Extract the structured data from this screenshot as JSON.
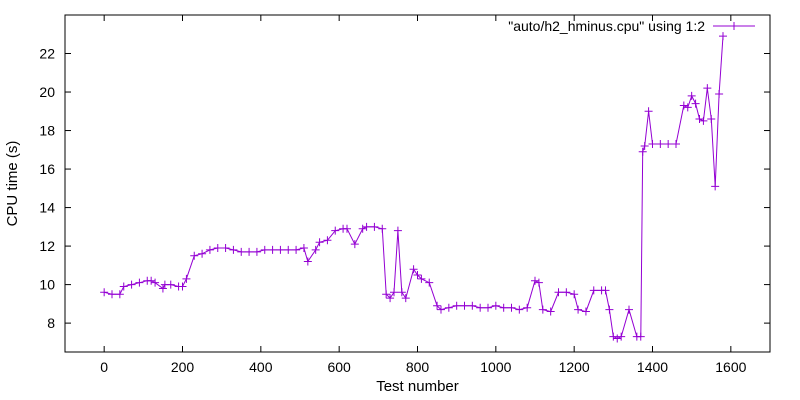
{
  "chart_data": {
    "type": "line",
    "xlabel": "Test number",
    "ylabel": "CPU time (s)",
    "xlim": [
      -100,
      1700
    ],
    "ylim": [
      6.5,
      24
    ],
    "xticks": [
      0,
      200,
      400,
      600,
      800,
      1000,
      1200,
      1400,
      1600
    ],
    "yticks": [
      8,
      10,
      12,
      14,
      16,
      18,
      20,
      22
    ],
    "legend_position": "top-right",
    "marker": "plus",
    "color": "#9400d3",
    "series": [
      {
        "name": "\"auto/h2_hminus.cpu\" using 1:2",
        "x": [
          0,
          20,
          40,
          50,
          70,
          90,
          110,
          120,
          130,
          150,
          155,
          170,
          190,
          200,
          210,
          230,
          250,
          270,
          290,
          310,
          330,
          350,
          370,
          390,
          410,
          430,
          450,
          470,
          490,
          510,
          520,
          540,
          550,
          570,
          590,
          610,
          620,
          640,
          660,
          670,
          690,
          710,
          720,
          730,
          740,
          750,
          760,
          770,
          790,
          800,
          810,
          830,
          850,
          860,
          880,
          900,
          920,
          940,
          960,
          980,
          1000,
          1020,
          1040,
          1060,
          1080,
          1100,
          1110,
          1120,
          1140,
          1160,
          1180,
          1200,
          1210,
          1230,
          1250,
          1270,
          1280,
          1290,
          1300,
          1310,
          1320,
          1340,
          1360,
          1370,
          1375,
          1380,
          1390,
          1400,
          1420,
          1440,
          1460,
          1480,
          1490,
          1500,
          1510,
          1520,
          1530,
          1540,
          1550,
          1560,
          1570,
          1580
        ],
        "y": [
          9.6,
          9.5,
          9.5,
          9.9,
          10.0,
          10.1,
          10.2,
          10.2,
          10.1,
          9.8,
          10.0,
          10.0,
          9.9,
          9.9,
          10.3,
          11.5,
          11.6,
          11.8,
          11.9,
          11.9,
          11.8,
          11.7,
          11.7,
          11.7,
          11.8,
          11.8,
          11.8,
          11.8,
          11.8,
          11.9,
          11.2,
          11.8,
          12.2,
          12.3,
          12.8,
          12.9,
          12.9,
          12.1,
          12.9,
          13.0,
          13.0,
          12.9,
          9.5,
          9.3,
          9.6,
          12.8,
          9.6,
          9.3,
          10.8,
          10.5,
          10.3,
          10.1,
          8.9,
          8.7,
          8.8,
          8.9,
          8.9,
          8.9,
          8.8,
          8.8,
          8.9,
          8.8,
          8.8,
          8.7,
          8.8,
          10.2,
          10.1,
          8.7,
          8.6,
          9.6,
          9.6,
          9.5,
          8.7,
          8.6,
          9.7,
          9.7,
          9.7,
          8.7,
          7.3,
          7.2,
          7.3,
          8.7,
          7.3,
          7.3,
          16.9,
          17.2,
          19.0,
          17.3,
          17.3,
          17.3,
          17.3,
          19.3,
          19.2,
          19.8,
          19.4,
          18.6,
          18.5,
          20.2,
          18.6,
          15.1,
          19.9,
          22.9
        ]
      }
    ]
  }
}
